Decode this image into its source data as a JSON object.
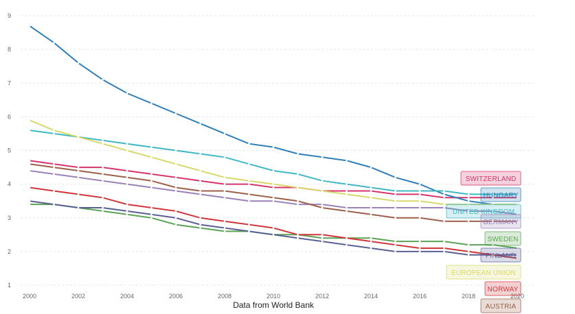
{
  "chart_data": {
    "type": "line",
    "xlabel": "Data from World Bank",
    "ylabel": "",
    "xlim": [
      2000,
      2020
    ],
    "ylim": [
      1,
      9
    ],
    "x_ticks": [
      2000,
      2002,
      2004,
      2006,
      2008,
      2010,
      2012,
      2014,
      2016,
      2018,
      2020
    ],
    "y_ticks": [
      1,
      2,
      3,
      4,
      5,
      6,
      7,
      8,
      9
    ],
    "grid": true,
    "legend_placement": "right",
    "x": [
      2000,
      2001,
      2002,
      2003,
      2004,
      2005,
      2006,
      2007,
      2008,
      2009,
      2010,
      2011,
      2012,
      2013,
      2014,
      2015,
      2016,
      2017,
      2018,
      2019,
      2020
    ],
    "series": [
      {
        "name": "SWITZERLAND",
        "color": "#d6336c",
        "values": [
          4.7,
          4.6,
          4.5,
          4.5,
          4.4,
          4.3,
          4.2,
          4.1,
          4.0,
          4.0,
          3.9,
          3.9,
          3.8,
          3.8,
          3.8,
          3.7,
          3.7,
          3.6,
          3.6,
          3.6,
          3.6
        ]
      },
      {
        "name": "HUNGARY",
        "color": "#2e7fb8",
        "values": [
          8.7,
          8.2,
          7.6,
          7.1,
          6.7,
          6.4,
          6.1,
          5.8,
          5.5,
          5.2,
          5.1,
          4.9,
          4.8,
          4.7,
          4.5,
          4.2,
          4.0,
          3.7,
          3.5,
          3.4,
          3.4
        ]
      },
      {
        "name": "UNITED KINGDOM",
        "color": "#3fb8c4",
        "values": [
          5.6,
          5.5,
          5.4,
          5.3,
          5.2,
          5.1,
          5.0,
          4.9,
          4.8,
          4.6,
          4.4,
          4.3,
          4.1,
          4.0,
          3.9,
          3.8,
          3.8,
          3.8,
          3.7,
          3.7,
          3.7
        ]
      },
      {
        "name": "GERMANY",
        "color": "#9a82b8",
        "values": [
          4.4,
          4.3,
          4.2,
          4.1,
          4.0,
          3.9,
          3.8,
          3.7,
          3.6,
          3.5,
          3.5,
          3.4,
          3.4,
          3.3,
          3.3,
          3.3,
          3.3,
          3.3,
          3.2,
          3.2,
          3.1
        ]
      },
      {
        "name": "SWEDEN",
        "color": "#5aa354",
        "values": [
          3.4,
          3.4,
          3.3,
          3.2,
          3.1,
          3.0,
          2.8,
          2.7,
          2.6,
          2.6,
          2.5,
          2.5,
          2.4,
          2.4,
          2.4,
          2.3,
          2.3,
          2.3,
          2.2,
          2.2,
          2.1
        ]
      },
      {
        "name": "FINLAND",
        "color": "#5a5f93",
        "values": [
          3.5,
          3.4,
          3.3,
          3.3,
          3.2,
          3.1,
          3.0,
          2.8,
          2.7,
          2.6,
          2.5,
          2.4,
          2.3,
          2.2,
          2.1,
          2.0,
          2.0,
          2.0,
          1.9,
          1.9,
          1.9
        ]
      },
      {
        "name": "EUROPEAN UNION",
        "color": "#d9d86a",
        "values": [
          5.9,
          5.6,
          5.4,
          5.2,
          5.0,
          4.8,
          4.6,
          4.4,
          4.2,
          4.1,
          4.0,
          3.9,
          3.8,
          3.7,
          3.6,
          3.5,
          3.5,
          3.4,
          3.4,
          3.4,
          3.4
        ]
      },
      {
        "name": "NORWAY",
        "color": "#d0353a",
        "values": [
          3.9,
          3.8,
          3.7,
          3.6,
          3.4,
          3.3,
          3.2,
          3.0,
          2.9,
          2.8,
          2.7,
          2.5,
          2.5,
          2.4,
          2.3,
          2.2,
          2.1,
          2.1,
          2.0,
          1.9,
          1.8
        ]
      },
      {
        "name": "AUSTRIA",
        "color": "#9c5f48",
        "values": [
          4.6,
          4.5,
          4.4,
          4.3,
          4.2,
          4.1,
          3.9,
          3.8,
          3.8,
          3.7,
          3.6,
          3.5,
          3.3,
          3.2,
          3.1,
          3.0,
          3.0,
          2.9,
          2.9,
          2.9,
          2.9
        ]
      }
    ]
  }
}
